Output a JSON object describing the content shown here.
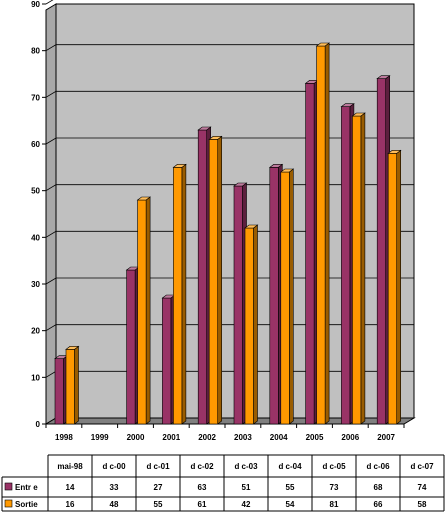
{
  "chart_data": {
    "type": "bar",
    "title": "",
    "xlabel": "",
    "ylabel": "",
    "categories": [
      "1998",
      "1999",
      "2000",
      "2001",
      "2002",
      "2003",
      "2004",
      "2005",
      "2006",
      "2007"
    ],
    "ylim": [
      0,
      90
    ],
    "yticks": [
      0,
      10,
      20,
      30,
      40,
      50,
      60,
      70,
      80,
      90
    ],
    "grid": true,
    "series": [
      {
        "name": "Entr  e",
        "color": "#993366",
        "values": [
          14,
          null,
          33,
          27,
          63,
          51,
          55,
          73,
          68,
          74
        ]
      },
      {
        "name": "Sortie",
        "color": "#ff9900",
        "values": [
          16,
          null,
          48,
          55,
          61,
          42,
          54,
          81,
          66,
          58
        ]
      }
    ],
    "table": {
      "columns": [
        "mai-98",
        "d  c-00",
        "d  c-01",
        "d  c-02",
        "d  c-03",
        "d  c-04",
        "d  c-05",
        "d  c-06",
        "d  c-07"
      ],
      "rows": [
        {
          "label": "Entr  e",
          "values": [
            "14",
            "33",
            "27",
            "63",
            "51",
            "55",
            "73",
            "68",
            "74"
          ]
        },
        {
          "label": "Sortie",
          "values": [
            "16",
            "48",
            "55",
            "61",
            "42",
            "54",
            "81",
            "66",
            "58"
          ]
        }
      ]
    },
    "colors": {
      "plot_bg": "#c0c0c0",
      "floor": "#808080",
      "grid": "#000000"
    }
  }
}
